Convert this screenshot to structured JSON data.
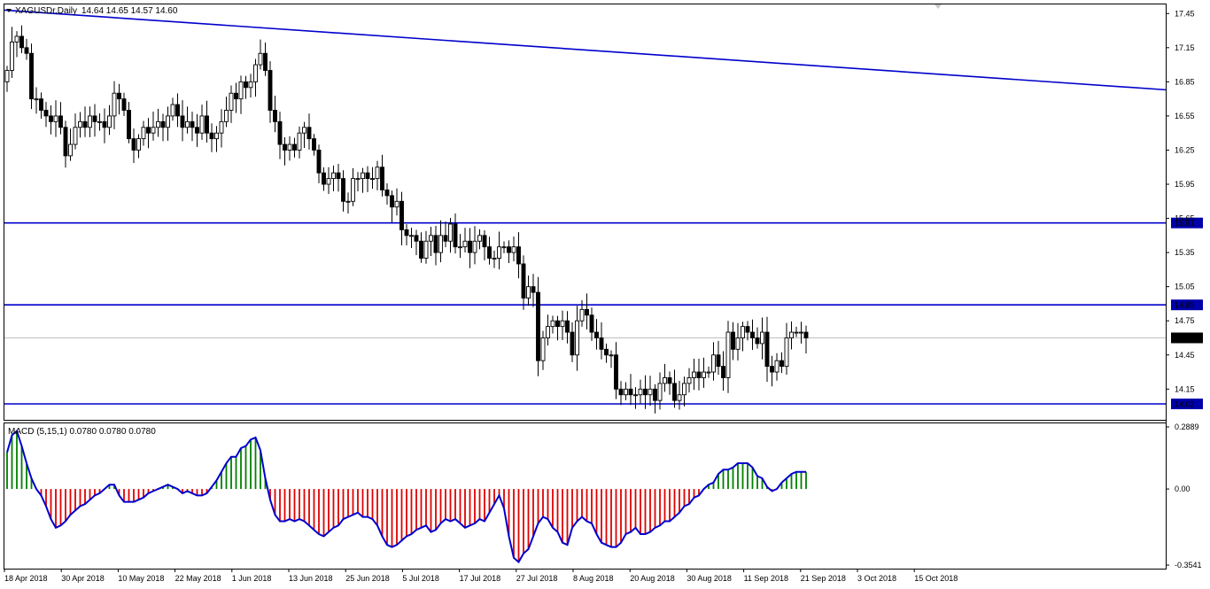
{
  "chart_data": [
    {
      "type": "candlestick",
      "symbol": "XAGUSDr",
      "timeframe": "Daily",
      "title": "XAGUSDr,Daily",
      "ohlc_readout": "14.64 14.65 14.57 14.60",
      "current_price": 14.6,
      "ylim": [
        13.88,
        17.53
      ],
      "y_ticks": [
        "17.45",
        "17.15",
        "16.85",
        "16.55",
        "16.25",
        "15.95",
        "15.65",
        "15.35",
        "15.05",
        "14.75",
        "14.45",
        "14.15"
      ],
      "x_ticks": [
        "18 Apr 2018",
        "30 Apr 2018",
        "10 May 2018",
        "22 May 2018",
        "1 Jun 2018",
        "13 Jun 2018",
        "25 Jun 2018",
        "5 Jul 2018",
        "17 Jul 2018",
        "27 Jul 2018",
        "8 Aug 2018",
        "20 Aug 2018",
        "30 Aug 2018",
        "11 Sep 2018",
        "21 Sep 2018",
        "3 Oct 2018",
        "15 Oct 2018"
      ],
      "levels": [
        {
          "label": "15.61",
          "value": 15.61
        },
        {
          "label": "14.89",
          "value": 14.89
        },
        {
          "label": "14.02",
          "value": 14.02
        }
      ],
      "price_label": "14.60",
      "trendline": {
        "from": [
          0,
          17.48
        ],
        "to": [
          189,
          16.78
        ]
      },
      "closes": [
        16.95,
        17.2,
        17.25,
        17.15,
        17.1,
        16.7,
        16.7,
        16.6,
        16.55,
        16.5,
        16.55,
        16.45,
        16.2,
        16.3,
        16.45,
        16.5,
        16.45,
        16.55,
        16.5,
        16.5,
        16.45,
        16.55,
        16.75,
        16.7,
        16.6,
        16.35,
        16.25,
        16.35,
        16.45,
        16.4,
        16.45,
        16.5,
        16.45,
        16.55,
        16.65,
        16.55,
        16.45,
        16.5,
        16.45,
        16.4,
        16.55,
        16.4,
        16.35,
        16.4,
        16.5,
        16.6,
        16.75,
        16.7,
        16.85,
        16.8,
        16.85,
        17.0,
        17.1,
        16.95,
        16.6,
        16.5,
        16.3,
        16.25,
        16.3,
        16.25,
        16.4,
        16.45,
        16.35,
        16.25,
        16.05,
        15.95,
        16.0,
        16.05,
        16.0,
        15.8,
        15.8,
        16.0,
        16.0,
        16.05,
        16.0,
        16.0,
        16.1,
        15.9,
        15.85,
        15.75,
        15.8,
        15.55,
        15.5,
        15.5,
        15.45,
        15.3,
        15.45,
        15.5,
        15.35,
        15.5,
        15.45,
        15.6,
        15.4,
        15.4,
        15.45,
        15.35,
        15.45,
        15.5,
        15.4,
        15.3,
        15.3,
        15.4,
        15.4,
        15.35,
        15.4,
        15.25,
        14.95,
        15.05,
        15.0,
        14.4,
        14.6,
        14.7,
        14.75,
        14.7,
        14.75,
        14.65,
        14.45,
        14.75,
        14.85,
        14.8,
        14.65,
        14.6,
        14.5,
        14.45,
        14.45,
        14.15,
        14.1,
        14.15,
        14.1,
        14.1,
        14.15,
        14.1,
        14.15,
        14.05,
        14.2,
        14.25,
        14.2,
        14.05,
        14.1,
        14.2,
        14.25,
        14.3,
        14.25,
        14.3,
        14.3,
        14.45,
        14.35,
        14.25,
        14.65,
        14.5,
        14.6,
        14.7,
        14.65,
        14.6,
        14.55,
        14.65,
        14.35,
        14.3,
        14.4,
        14.35,
        14.6,
        14.65,
        14.65,
        14.65,
        14.6
      ],
      "macd": {
        "label": "MACD (5,15,1) 0.0780 0.0780 0.0780",
        "ylim": [
          -0.3541,
          0.2889
        ],
        "y_ticks": [
          "0.2889",
          "0.00",
          "-0.3541"
        ],
        "values": [
          0.17,
          0.25,
          0.27,
          0.2,
          0.12,
          0.05,
          0.0,
          -0.03,
          -0.08,
          -0.14,
          -0.18,
          -0.17,
          -0.15,
          -0.12,
          -0.1,
          -0.08,
          -0.07,
          -0.05,
          -0.03,
          -0.02,
          0.0,
          0.02,
          0.02,
          -0.03,
          -0.06,
          -0.06,
          -0.06,
          -0.05,
          -0.04,
          -0.02,
          -0.01,
          0.0,
          0.01,
          0.02,
          0.01,
          0.0,
          -0.02,
          -0.01,
          -0.02,
          -0.03,
          -0.03,
          -0.02,
          0.01,
          0.04,
          0.08,
          0.12,
          0.15,
          0.15,
          0.19,
          0.2,
          0.23,
          0.24,
          0.18,
          0.05,
          -0.05,
          -0.12,
          -0.15,
          -0.15,
          -0.14,
          -0.15,
          -0.14,
          -0.15,
          -0.17,
          -0.19,
          -0.21,
          -0.22,
          -0.2,
          -0.18,
          -0.17,
          -0.14,
          -0.13,
          -0.12,
          -0.11,
          -0.13,
          -0.13,
          -0.14,
          -0.17,
          -0.22,
          -0.26,
          -0.27,
          -0.26,
          -0.24,
          -0.22,
          -0.21,
          -0.19,
          -0.18,
          -0.17,
          -0.2,
          -0.19,
          -0.16,
          -0.14,
          -0.15,
          -0.14,
          -0.16,
          -0.18,
          -0.17,
          -0.16,
          -0.14,
          -0.15,
          -0.11,
          -0.07,
          -0.03,
          -0.09,
          -0.22,
          -0.32,
          -0.34,
          -0.3,
          -0.28,
          -0.22,
          -0.16,
          -0.13,
          -0.14,
          -0.18,
          -0.2,
          -0.25,
          -0.26,
          -0.18,
          -0.15,
          -0.13,
          -0.15,
          -0.16,
          -0.21,
          -0.25,
          -0.26,
          -0.27,
          -0.27,
          -0.25,
          -0.21,
          -0.2,
          -0.18,
          -0.21,
          -0.21,
          -0.2,
          -0.18,
          -0.17,
          -0.15,
          -0.15,
          -0.13,
          -0.11,
          -0.08,
          -0.07,
          -0.04,
          -0.03,
          0.0,
          0.02,
          0.03,
          0.07,
          0.09,
          0.09,
          0.1,
          0.12,
          0.12,
          0.12,
          0.1,
          0.06,
          0.05,
          0.01,
          -0.01,
          0.0,
          0.03,
          0.05,
          0.07,
          0.08,
          0.08,
          0.08
        ]
      }
    }
  ]
}
